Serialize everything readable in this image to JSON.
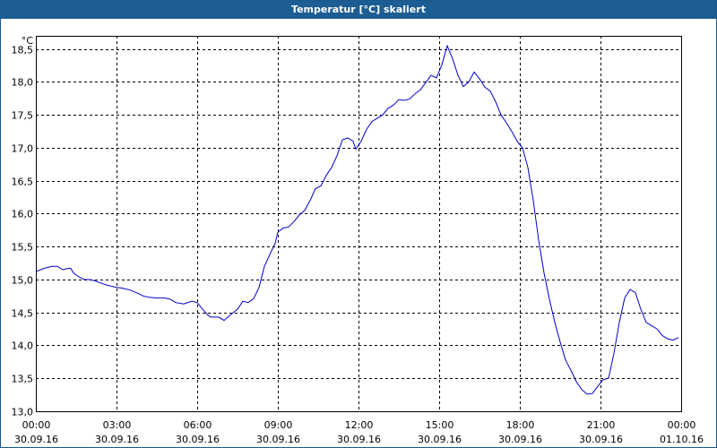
{
  "window": {
    "title": "Temperatur [°C] skaliert"
  },
  "chart_data": {
    "type": "line",
    "title": "Temperatur [°C] skaliert",
    "ylabel": "°C",
    "xlabel": "",
    "ylim": [
      13.0,
      18.7
    ],
    "xlim": [
      0,
      24
    ],
    "grid": true,
    "line_color": "#0000cc",
    "grid_color": "#000000",
    "yticks": [
      {
        "v": 13.0,
        "label": "13,0"
      },
      {
        "v": 13.5,
        "label": "13,5"
      },
      {
        "v": 14.0,
        "label": "14,0"
      },
      {
        "v": 14.5,
        "label": "14,5"
      },
      {
        "v": 15.0,
        "label": "15,0"
      },
      {
        "v": 15.5,
        "label": "15,5"
      },
      {
        "v": 16.0,
        "label": "16,0"
      },
      {
        "v": 16.5,
        "label": "16,5"
      },
      {
        "v": 17.0,
        "label": "17,0"
      },
      {
        "v": 17.5,
        "label": "17,5"
      },
      {
        "v": 18.0,
        "label": "18,0"
      },
      {
        "v": 18.5,
        "label": "18,5"
      }
    ],
    "xticks": [
      {
        "v": 0,
        "time": "00:00",
        "date": "30.09.16"
      },
      {
        "v": 3,
        "time": "03:00",
        "date": "30.09.16"
      },
      {
        "v": 6,
        "time": "06:00",
        "date": "30.09.16"
      },
      {
        "v": 9,
        "time": "09:00",
        "date": "30.09.16"
      },
      {
        "v": 12,
        "time": "12:00",
        "date": "30.09.16"
      },
      {
        "v": 15,
        "time": "15:00",
        "date": "30.09.16"
      },
      {
        "v": 18,
        "time": "18:00",
        "date": "30.09.16"
      },
      {
        "v": 21,
        "time": "21:00",
        "date": "30.09.16"
      },
      {
        "v": 24,
        "time": "00:00",
        "date": "01.10.16"
      }
    ],
    "series": [
      {
        "x": [
          0.0,
          0.3,
          0.6,
          0.8,
          1.0,
          1.2,
          1.3,
          1.4,
          1.6,
          1.8,
          2.0,
          2.2,
          2.4,
          2.6,
          2.8,
          3.0,
          3.2,
          3.5,
          3.8,
          4.0,
          4.2,
          4.5,
          4.8,
          5.0,
          5.2,
          5.5,
          5.8,
          6.0,
          6.2,
          6.4,
          6.5,
          6.8,
          7.0,
          7.2,
          7.5,
          7.7,
          7.9,
          8.1,
          8.3,
          8.5,
          8.7,
          8.9,
          9.0,
          9.2,
          9.4,
          9.6,
          9.8,
          10.0,
          10.2,
          10.4,
          10.6,
          10.8,
          11.0,
          11.2,
          11.4,
          11.6,
          11.8,
          11.9,
          12.1,
          12.3,
          12.5,
          12.7,
          12.9,
          13.1,
          13.3,
          13.5,
          13.7,
          13.9,
          14.1,
          14.3,
          14.5,
          14.7,
          14.9,
          15.1,
          15.3,
          15.5,
          15.7,
          15.9,
          16.1,
          16.3,
          16.5,
          16.7,
          16.9,
          17.1,
          17.3,
          17.5,
          17.7,
          17.9,
          18.1,
          18.3,
          18.5,
          18.7,
          18.9,
          19.1,
          19.3,
          19.5,
          19.7,
          19.9,
          20.1,
          20.3,
          20.5,
          20.7,
          20.9,
          21.1,
          21.3,
          21.5,
          21.7,
          21.9,
          22.1,
          22.3,
          22.5,
          22.7,
          22.9,
          23.1,
          23.3,
          23.5,
          23.7,
          23.9
        ],
        "y": [
          15.12,
          15.17,
          15.2,
          15.2,
          15.15,
          15.17,
          15.17,
          15.1,
          15.04,
          15.0,
          15.0,
          14.98,
          14.95,
          14.92,
          14.9,
          14.88,
          14.87,
          14.84,
          14.79,
          14.75,
          14.73,
          14.72,
          14.72,
          14.7,
          14.65,
          14.63,
          14.67,
          14.65,
          14.55,
          14.46,
          14.43,
          14.43,
          14.38,
          14.45,
          14.55,
          14.67,
          14.65,
          14.71,
          14.88,
          15.2,
          15.38,
          15.55,
          15.72,
          15.78,
          15.8,
          15.88,
          15.98,
          16.05,
          16.2,
          16.38,
          16.42,
          16.58,
          16.7,
          16.88,
          17.12,
          17.15,
          17.1,
          16.98,
          17.1,
          17.28,
          17.4,
          17.45,
          17.5,
          17.6,
          17.65,
          17.73,
          17.72,
          17.74,
          17.82,
          17.88,
          17.99,
          18.1,
          18.06,
          18.26,
          18.55,
          18.35,
          18.1,
          17.93,
          18.0,
          18.15,
          18.05,
          17.92,
          17.86,
          17.7,
          17.5,
          17.38,
          17.25,
          17.1,
          17.0,
          16.7,
          16.2,
          15.6,
          15.1,
          14.7,
          14.35,
          14.05,
          13.78,
          13.62,
          13.45,
          13.33,
          13.26,
          13.27,
          13.38,
          13.48,
          13.5,
          13.88,
          14.35,
          14.72,
          14.85,
          14.8,
          14.55,
          14.35,
          14.3,
          14.25,
          14.15,
          14.1,
          14.08,
          14.12
        ]
      }
    ]
  }
}
